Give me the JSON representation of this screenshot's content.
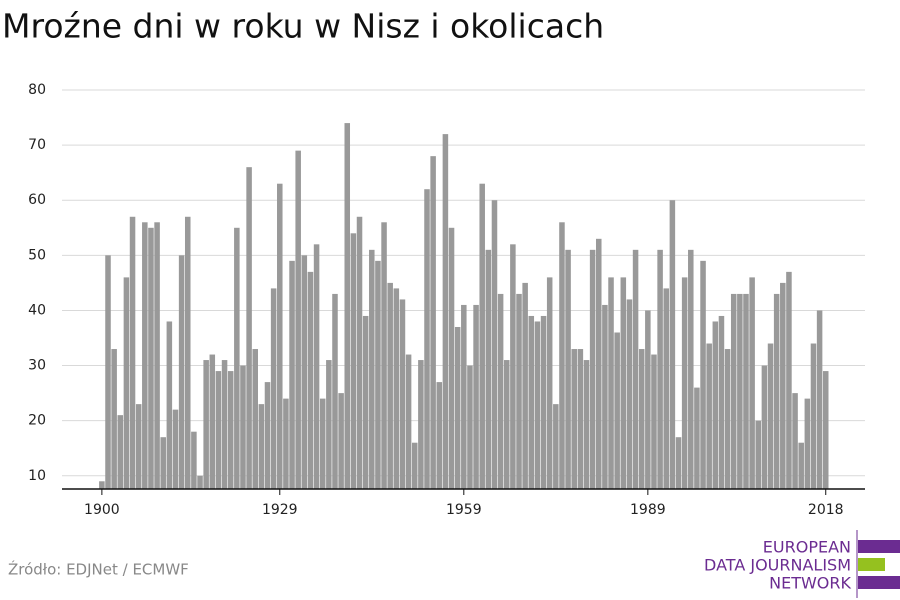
{
  "chart_data": {
    "type": "bar",
    "title": "Mroźne dni w roku w Nisz i okolicach",
    "source": "Źródło: EDJNet / ECMWF",
    "x": [
      1900,
      1901,
      1902,
      1903,
      1904,
      1905,
      1906,
      1907,
      1908,
      1909,
      1910,
      1911,
      1912,
      1913,
      1914,
      1915,
      1916,
      1917,
      1918,
      1919,
      1920,
      1921,
      1922,
      1923,
      1924,
      1925,
      1926,
      1927,
      1928,
      1929,
      1930,
      1931,
      1932,
      1933,
      1934,
      1935,
      1936,
      1937,
      1938,
      1939,
      1940,
      1941,
      1942,
      1943,
      1944,
      1945,
      1946,
      1947,
      1948,
      1949,
      1950,
      1951,
      1952,
      1953,
      1954,
      1955,
      1956,
      1957,
      1958,
      1959,
      1960,
      1961,
      1962,
      1963,
      1964,
      1965,
      1966,
      1967,
      1968,
      1969,
      1970,
      1971,
      1972,
      1973,
      1974,
      1975,
      1976,
      1977,
      1978,
      1979,
      1980,
      1981,
      1982,
      1983,
      1984,
      1985,
      1986,
      1987,
      1988,
      1989,
      1990,
      1991,
      1992,
      1993,
      1994,
      1995,
      1996,
      1997,
      1998,
      1999,
      2000,
      2001,
      2002,
      2003,
      2004,
      2005,
      2006,
      2007,
      2008,
      2009,
      2010,
      2011,
      2012,
      2013,
      2014,
      2015,
      2016,
      2017,
      2018
    ],
    "values": [
      9,
      50,
      33,
      21,
      46,
      57,
      23,
      56,
      55,
      56,
      17,
      38,
      22,
      50,
      57,
      18,
      10,
      31,
      32,
      29,
      31,
      29,
      55,
      30,
      66,
      33,
      23,
      27,
      44,
      63,
      24,
      49,
      69,
      50,
      47,
      52,
      24,
      31,
      43,
      25,
      74,
      54,
      57,
      39,
      51,
      49,
      56,
      45,
      44,
      42,
      32,
      16,
      31,
      62,
      68,
      27,
      72,
      55,
      37,
      41,
      30,
      41,
      63,
      51,
      60,
      43,
      31,
      52,
      43,
      45,
      39,
      38,
      39,
      46,
      23,
      56,
      51,
      33,
      33,
      31,
      51,
      53,
      41,
      46,
      36,
      46,
      42,
      51,
      33,
      40,
      32,
      51,
      44,
      60,
      17,
      46,
      51,
      26,
      49,
      34,
      38,
      39,
      33,
      43,
      43,
      43,
      46,
      20,
      30,
      34,
      43,
      45,
      47,
      25,
      16,
      24,
      34,
      40,
      29
    ],
    "color": "#999999",
    "xlim": [
      1893.5,
      2024.4
    ],
    "xticks": [
      1900,
      1929,
      1959,
      1989,
      2018
    ],
    "ylim": [
      7.6,
      82
    ],
    "yticks": [
      10,
      20,
      30,
      40,
      50,
      60,
      70,
      80
    ],
    "grid": true
  },
  "logo": [
    "EUROPEAN",
    "DATA JOURNALISM",
    "NETWORK"
  ]
}
